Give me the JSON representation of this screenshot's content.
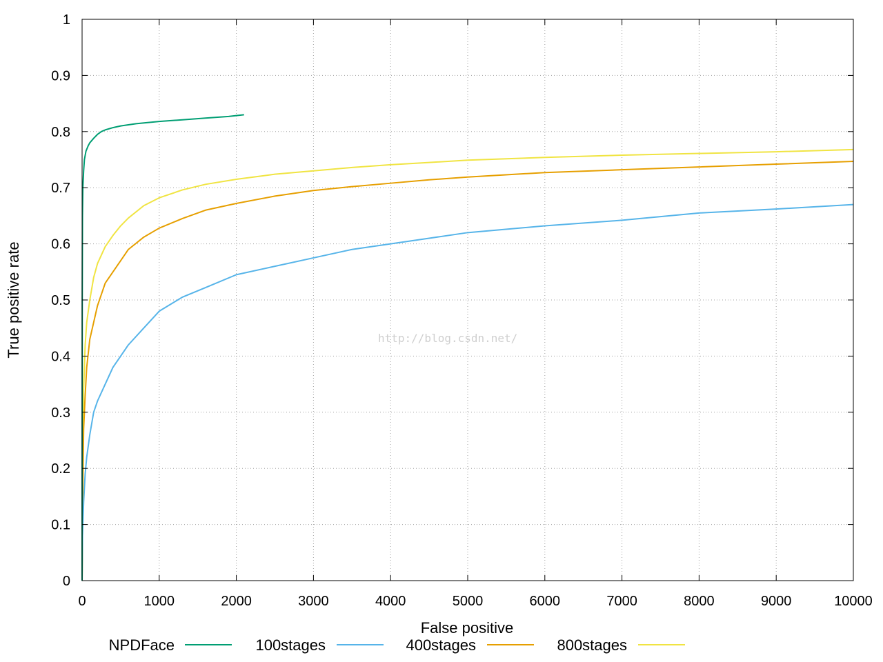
{
  "chart_data": {
    "type": "line",
    "title": "",
    "xlabel": "False positive",
    "ylabel": "True positive rate",
    "xlim": [
      0,
      10000
    ],
    "ylim": [
      0,
      1
    ],
    "grid": true,
    "legend_position": "bottom",
    "x_ticks": [
      "0",
      "1000",
      "2000",
      "3000",
      "4000",
      "5000",
      "6000",
      "7000",
      "8000",
      "9000",
      "10000"
    ],
    "y_ticks": [
      "0",
      "0.1",
      "0.2",
      "0.3",
      "0.4",
      "0.5",
      "0.6",
      "0.7",
      "0.8",
      "0.9",
      "1"
    ],
    "watermark": "http://blog.csdn.net/",
    "series": [
      {
        "name": "NPDFace",
        "color": "#009e73",
        "x": [
          0,
          2,
          5,
          10,
          20,
          30,
          50,
          80,
          100,
          150,
          200,
          250,
          300,
          400,
          500,
          700,
          1000,
          1300,
          1600,
          1900,
          2100
        ],
        "y": [
          0,
          0.5,
          0.65,
          0.7,
          0.73,
          0.75,
          0.765,
          0.775,
          0.78,
          0.788,
          0.795,
          0.8,
          0.803,
          0.807,
          0.81,
          0.814,
          0.818,
          0.821,
          0.824,
          0.827,
          0.83
        ]
      },
      {
        "name": "100stages",
        "color": "#56b4e9",
        "x": [
          0,
          5,
          10,
          20,
          40,
          60,
          100,
          150,
          200,
          300,
          400,
          500,
          600,
          800,
          1000,
          1300,
          1600,
          2000,
          2500,
          3000,
          3500,
          4000,
          4500,
          5000,
          6000,
          7000,
          8000,
          9000,
          10000
        ],
        "y": [
          0,
          0.08,
          0.1,
          0.14,
          0.19,
          0.22,
          0.26,
          0.3,
          0.32,
          0.35,
          0.38,
          0.4,
          0.42,
          0.45,
          0.48,
          0.505,
          0.522,
          0.545,
          0.56,
          0.575,
          0.59,
          0.6,
          0.61,
          0.62,
          0.632,
          0.642,
          0.655,
          0.662,
          0.67
        ]
      },
      {
        "name": "400stages",
        "color": "#e69f00",
        "x": [
          0,
          5,
          10,
          20,
          40,
          60,
          100,
          150,
          200,
          300,
          400,
          500,
          600,
          800,
          1000,
          1300,
          1600,
          2000,
          2500,
          3000,
          3500,
          4000,
          4500,
          5000,
          6000,
          7000,
          8000,
          9000,
          10000
        ],
        "y": [
          0,
          0.09,
          0.17,
          0.27,
          0.33,
          0.38,
          0.43,
          0.46,
          0.49,
          0.53,
          0.55,
          0.57,
          0.59,
          0.612,
          0.628,
          0.645,
          0.66,
          0.672,
          0.685,
          0.695,
          0.702,
          0.708,
          0.714,
          0.719,
          0.727,
          0.732,
          0.737,
          0.742,
          0.747
        ]
      },
      {
        "name": "800stages",
        "color": "#f0e442",
        "x": [
          0,
          5,
          10,
          20,
          40,
          60,
          100,
          150,
          200,
          300,
          400,
          500,
          600,
          800,
          1000,
          1300,
          1600,
          2000,
          2500,
          3000,
          3500,
          4000,
          4500,
          5000,
          6000,
          7000,
          8000,
          9000,
          10000
        ],
        "y": [
          0,
          0.1,
          0.22,
          0.34,
          0.42,
          0.46,
          0.5,
          0.54,
          0.565,
          0.595,
          0.615,
          0.632,
          0.646,
          0.668,
          0.682,
          0.696,
          0.706,
          0.715,
          0.724,
          0.73,
          0.736,
          0.741,
          0.745,
          0.749,
          0.754,
          0.758,
          0.761,
          0.764,
          0.768
        ]
      }
    ]
  }
}
